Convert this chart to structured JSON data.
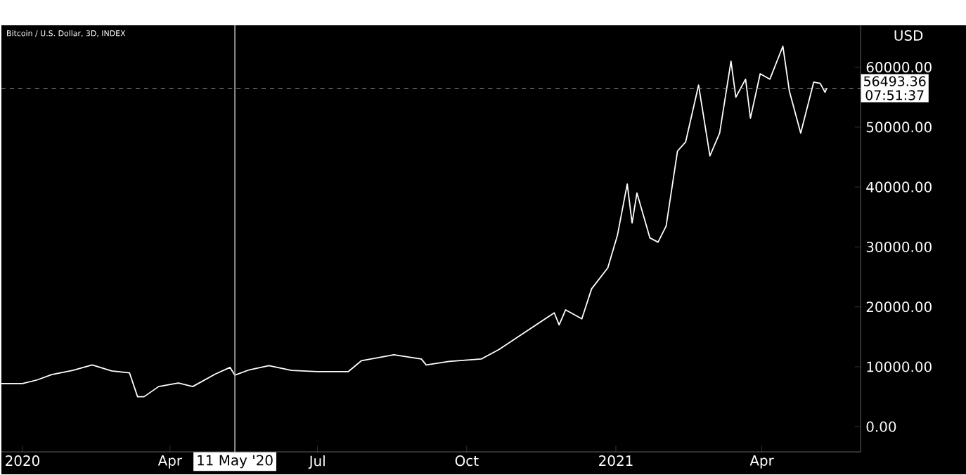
{
  "chart_data": {
    "type": "line",
    "title": "Bitcoin / U.S. Dollar, 3D, INDEX",
    "ylabel": "USD",
    "xlim": [
      "2019-12-19",
      "2021-06-01"
    ],
    "ylim": [
      -4200,
      67000
    ],
    "xticks": [
      {
        "value": "2020-01-01",
        "label": "2020"
      },
      {
        "value": "2020-04-01",
        "label": "Apr"
      },
      {
        "value": "2020-07-01",
        "label": "Jul"
      },
      {
        "value": "2020-10-01",
        "label": "Oct"
      },
      {
        "value": "2021-01-01",
        "label": "2021"
      },
      {
        "value": "2021-04-01",
        "label": "Apr"
      }
    ],
    "yticks": [
      {
        "value": 0,
        "label": "0.00"
      },
      {
        "value": 10000,
        "label": "10000.00"
      },
      {
        "value": 20000,
        "label": "20000.00"
      },
      {
        "value": 30000,
        "label": "30000.00"
      },
      {
        "value": 40000,
        "label": "40000.00"
      },
      {
        "value": 50000,
        "label": "50000.00"
      },
      {
        "value": 60000,
        "label": "60000.00"
      }
    ],
    "series": [
      {
        "color": "#ffffff",
        "x": [
          "2019-12-19",
          "2020-01-01",
          "2020-01-10",
          "2020-01-19",
          "2020-02-01",
          "2020-02-13",
          "2020-02-25",
          "2020-03-07",
          "2020-03-12",
          "2020-03-16",
          "2020-03-25",
          "2020-04-06",
          "2020-04-15",
          "2020-04-29",
          "2020-05-08",
          "2020-05-11",
          "2020-05-20",
          "2020-06-01",
          "2020-06-15",
          "2020-07-01",
          "2020-07-20",
          "2020-07-28",
          "2020-08-17",
          "2020-09-03",
          "2020-09-06",
          "2020-09-20",
          "2020-10-10",
          "2020-10-21",
          "2020-11-05",
          "2020-11-24",
          "2020-11-27",
          "2020-12-01",
          "2020-12-11",
          "2020-12-17",
          "2020-12-27",
          "2021-01-02",
          "2021-01-08",
          "2021-01-11",
          "2021-01-14",
          "2021-01-22",
          "2021-01-27",
          "2021-02-01",
          "2021-02-08",
          "2021-02-13",
          "2021-02-21",
          "2021-02-28",
          "2021-03-06",
          "2021-03-13",
          "2021-03-16",
          "2021-03-22",
          "2021-03-25",
          "2021-03-31",
          "2021-04-06",
          "2021-04-14",
          "2021-04-18",
          "2021-04-25",
          "2021-05-03",
          "2021-05-07",
          "2021-05-10",
          "2021-05-11"
        ],
        "values": [
          7200,
          7200,
          7800,
          8700,
          9400,
          10300,
          9300,
          9000,
          5000,
          5000,
          6700,
          7300,
          6700,
          8800,
          9900,
          8600,
          9500,
          10200,
          9400,
          9200,
          9200,
          11000,
          12000,
          11300,
          10300,
          10900,
          11300,
          12900,
          15600,
          19000,
          17000,
          19500,
          18000,
          23000,
          26500,
          32000,
          40500,
          34000,
          39000,
          31500,
          30800,
          33500,
          46000,
          47500,
          57000,
          45200,
          49000,
          61000,
          55000,
          58000,
          51500,
          58900,
          58000,
          63500,
          56000,
          49000,
          57500,
          57300,
          55800,
          56493.36
        ]
      }
    ],
    "ref_lines": [
      {
        "axis": "x",
        "value": "2020-05-11",
        "label": "11 May '20",
        "color": "#b0b0b0",
        "line_style": "solid"
      },
      {
        "axis": "y",
        "value": 56493.36,
        "label": "56493.36",
        "color": "#9a9a9a",
        "line_style": "dashed"
      }
    ],
    "annotations": [
      "07:51:37"
    ]
  }
}
